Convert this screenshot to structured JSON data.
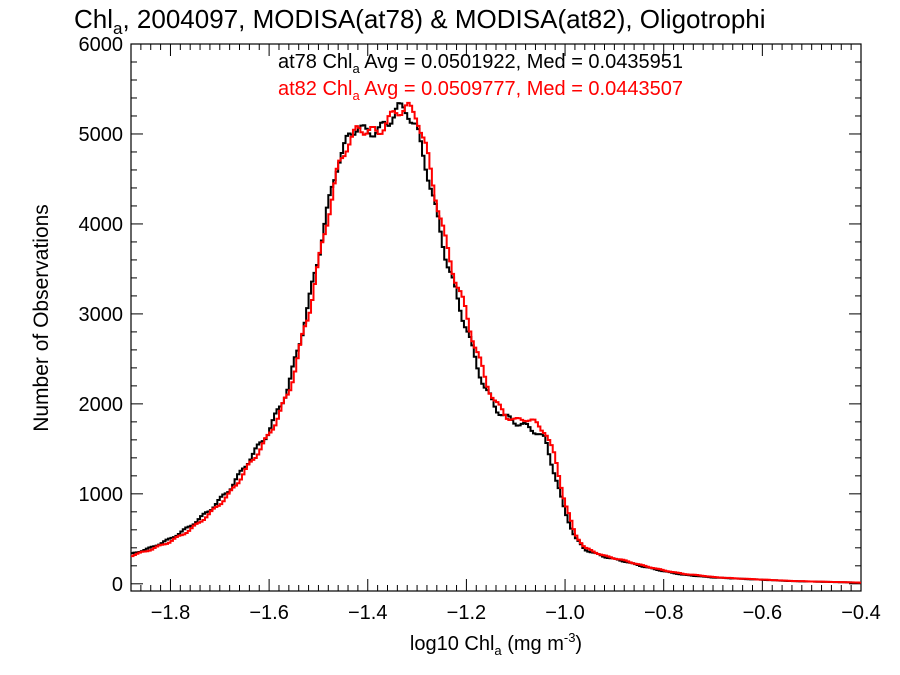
{
  "chart_data": {
    "type": "line",
    "title": {
      "main": "Chl",
      "sub": "a",
      "rest": ", 2004097, MODISA(at78) & MODISA(at82), Oligotrophi"
    },
    "xlabel": {
      "pre": "log10 Chl",
      "sub": "a",
      "post": " (mg m",
      "sup": "-3",
      "close": ")"
    },
    "ylabel": "Number of Observations",
    "xlim": [
      -1.88,
      -0.4
    ],
    "ylim": [
      -80,
      6000
    ],
    "xticks": [
      -1.8,
      -1.6,
      -1.4,
      -1.2,
      -1.0,
      -0.8,
      -0.6,
      -0.4
    ],
    "xtick_labels": [
      "−1.8",
      "−1.6",
      "−1.4",
      "−1.2",
      "−1.0",
      "−0.8",
      "−0.6",
      "−0.4"
    ],
    "yticks": [
      0,
      1000,
      2000,
      3000,
      4000,
      5000,
      6000
    ],
    "ytick_labels": [
      "0",
      "1000",
      "2000",
      "3000",
      "4000",
      "5000",
      "6000"
    ],
    "grid": false,
    "step": "histogram",
    "series": [
      {
        "name": "at78",
        "color": "#000000",
        "legend": {
          "pre": "at78 Chl",
          "sub": "a",
          "post": " Avg = 0.0501922, Med = 0.0435951"
        },
        "x": [
          -1.88,
          -1.84,
          -1.8,
          -1.76,
          -1.72,
          -1.68,
          -1.64,
          -1.6,
          -1.56,
          -1.52,
          -1.5,
          -1.48,
          -1.46,
          -1.44,
          -1.42,
          -1.4,
          -1.38,
          -1.36,
          -1.34,
          -1.32,
          -1.3,
          -1.28,
          -1.26,
          -1.24,
          -1.22,
          -1.2,
          -1.18,
          -1.16,
          -1.14,
          -1.12,
          -1.1,
          -1.08,
          -1.06,
          -1.04,
          -1.02,
          -1.0,
          -0.98,
          -0.96,
          -0.92,
          -0.88,
          -0.84,
          -0.8,
          -0.76,
          -0.72,
          -0.7,
          -0.66,
          -0.62,
          -0.58,
          -0.54,
          -0.5,
          -0.46,
          -0.42,
          -0.4
        ],
        "values": [
          330,
          400,
          500,
          640,
          820,
          1050,
          1380,
          1700,
          2200,
          3100,
          3650,
          4200,
          4700,
          4950,
          5100,
          5000,
          5050,
          5100,
          5300,
          5250,
          5050,
          4600,
          4100,
          3600,
          3200,
          2850,
          2450,
          2150,
          1950,
          1850,
          1800,
          1750,
          1700,
          1600,
          1200,
          800,
          520,
          380,
          300,
          250,
          190,
          140,
          100,
          80,
          70,
          60,
          50,
          40,
          30,
          25,
          20,
          15,
          10
        ]
      },
      {
        "name": "at82",
        "color": "#ff0000",
        "legend": {
          "pre": "at82 Chl",
          "sub": "a",
          "post": " Avg = 0.0509777, Med = 0.0443507"
        },
        "x": [
          -1.88,
          -1.84,
          -1.8,
          -1.76,
          -1.72,
          -1.68,
          -1.64,
          -1.6,
          -1.56,
          -1.52,
          -1.5,
          -1.48,
          -1.46,
          -1.44,
          -1.42,
          -1.4,
          -1.38,
          -1.36,
          -1.34,
          -1.32,
          -1.3,
          -1.28,
          -1.26,
          -1.24,
          -1.22,
          -1.2,
          -1.18,
          -1.16,
          -1.14,
          -1.12,
          -1.1,
          -1.08,
          -1.06,
          -1.04,
          -1.02,
          -1.0,
          -0.98,
          -0.96,
          -0.92,
          -0.88,
          -0.84,
          -0.8,
          -0.76,
          -0.72,
          -0.7,
          -0.66,
          -0.62,
          -0.58,
          -0.54,
          -0.5,
          -0.46,
          -0.42,
          -0.4
        ],
        "values": [
          310,
          380,
          470,
          600,
          780,
          1000,
          1320,
          1650,
          2120,
          3000,
          3550,
          4100,
          4620,
          4900,
          5050,
          5050,
          5000,
          5150,
          5250,
          5300,
          5200,
          4800,
          4250,
          3750,
          3350,
          3000,
          2600,
          2250,
          2000,
          1880,
          1800,
          1850,
          1780,
          1700,
          1400,
          900,
          560,
          400,
          310,
          260,
          200,
          150,
          110,
          90,
          75,
          62,
          52,
          42,
          32,
          26,
          21,
          16,
          12
        ]
      }
    ]
  }
}
